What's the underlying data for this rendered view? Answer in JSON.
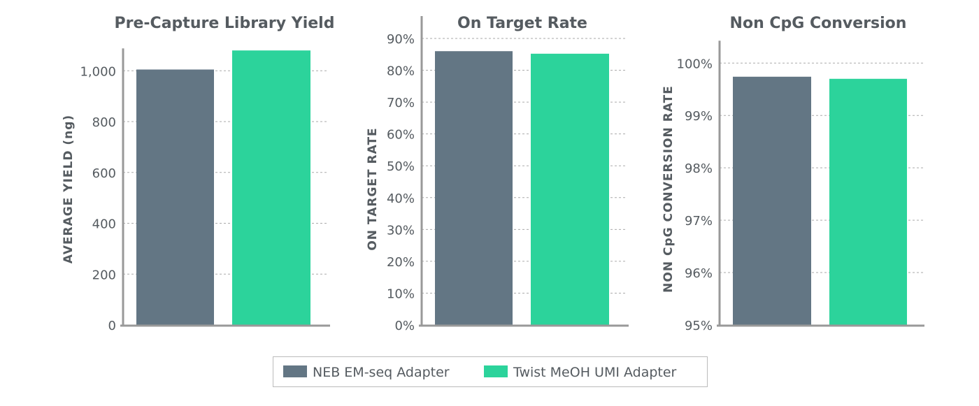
{
  "legend": [
    {
      "name": "NEB EM-seq Adapter",
      "color": "#637684"
    },
    {
      "name": "Twist MeOH UMI Adapter",
      "color": "#2cd39b"
    }
  ],
  "chart_data": [
    {
      "type": "bar",
      "title": "Pre-Capture Library Yield",
      "ylabel": "AVERAGE YIELD (ng)",
      "ylim": [
        0,
        1100
      ],
      "ticks": [
        0,
        200,
        400,
        600,
        800,
        1000
      ],
      "tick_labels": [
        "0",
        "200",
        "400",
        "600",
        "800",
        "1,000"
      ],
      "series": [
        {
          "name": "NEB EM-seq Adapter",
          "values": [
            1005
          ]
        },
        {
          "name": "Twist MeOH UMI Adapter",
          "values": [
            1080
          ]
        }
      ],
      "grid": true
    },
    {
      "type": "bar",
      "title": "On Target Rate",
      "ylabel": "ON TARGET RATE",
      "ylim": [
        0,
        90
      ],
      "ticks": [
        0,
        10,
        20,
        30,
        40,
        50,
        60,
        70,
        80,
        90
      ],
      "tick_labels": [
        "0%",
        "10%",
        "20%",
        "30%",
        "40%",
        "50%",
        "60%",
        "70%",
        "80%",
        "90%"
      ],
      "series": [
        {
          "name": "NEB EM-seq Adapter",
          "values": [
            86.0
          ]
        },
        {
          "name": "Twist MeOH UMI Adapter",
          "values": [
            85.2
          ]
        }
      ],
      "grid": true
    },
    {
      "type": "bar",
      "title": "Non CpG Conversion",
      "ylabel": "NON CpG CONVERSION RATE",
      "ylim": [
        95,
        100.4
      ],
      "ticks": [
        95,
        96,
        97,
        98,
        99,
        100
      ],
      "tick_labels": [
        "95%",
        "96%",
        "97%",
        "98%",
        "99%",
        "100%"
      ],
      "series": [
        {
          "name": "NEB EM-seq Adapter",
          "values": [
            99.74
          ]
        },
        {
          "name": "Twist MeOH UMI Adapter",
          "values": [
            99.7
          ]
        }
      ],
      "grid": true
    }
  ]
}
